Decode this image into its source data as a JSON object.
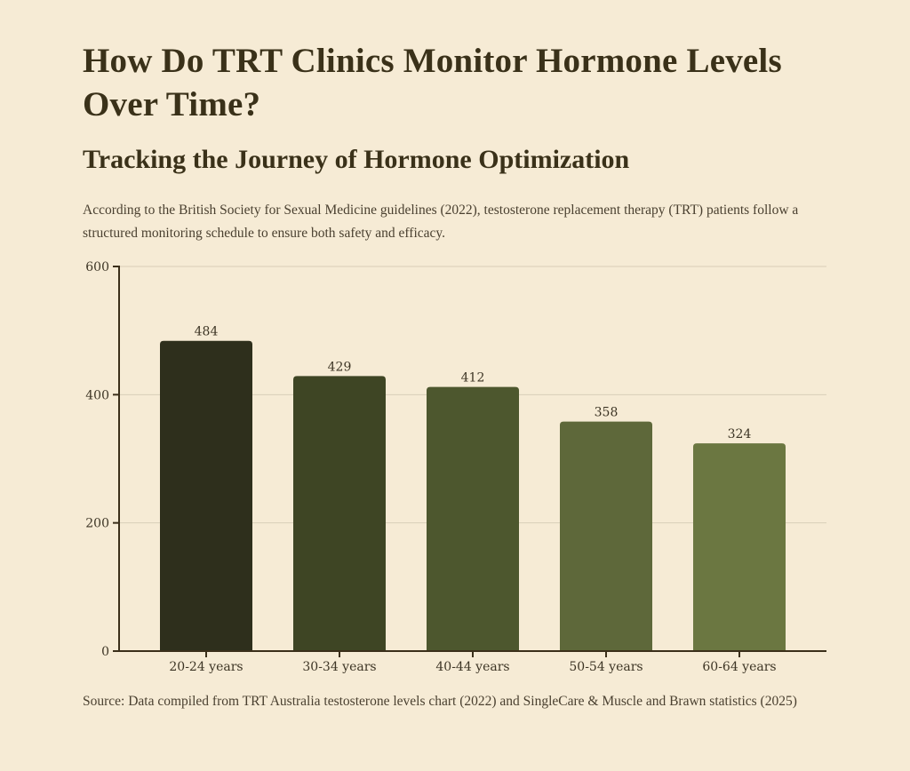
{
  "header": {
    "title": "How Do TRT Clinics Monitor Hormone Levels Over Time?",
    "subtitle": "Tracking the Journey of Hormone Optimization",
    "intro": "According to the British Society for Sexual Medicine guidelines (2022), testosterone replacement therapy (TRT) patients follow a structured monitoring schedule to ensure both safety and efficacy."
  },
  "footer": {
    "source": "Source: Data compiled from TRT Australia testosterone levels chart (2022) and SingleCare & Muscle and Brawn statistics (2025)"
  },
  "colors": {
    "background": "#f6ebd5",
    "axis": "#3b2f1a",
    "grid": "#d9ceb8",
    "bars": [
      "#2e2f1c",
      "#3e4524",
      "#4d572e",
      "#5e683a",
      "#6b7741"
    ]
  },
  "chart_data": {
    "type": "bar",
    "title": "",
    "xlabel": "",
    "ylabel": "",
    "categories": [
      "20-24 years",
      "30-34 years",
      "40-44 years",
      "50-54 years",
      "60-64 years"
    ],
    "values": [
      484,
      429,
      412,
      358,
      324
    ],
    "data_labels": [
      "484",
      "429",
      "412",
      "358",
      "324"
    ],
    "ylim": [
      0,
      600
    ],
    "yticks": [
      0,
      200,
      400,
      600
    ],
    "grid": "horizontal",
    "legend": "none"
  }
}
